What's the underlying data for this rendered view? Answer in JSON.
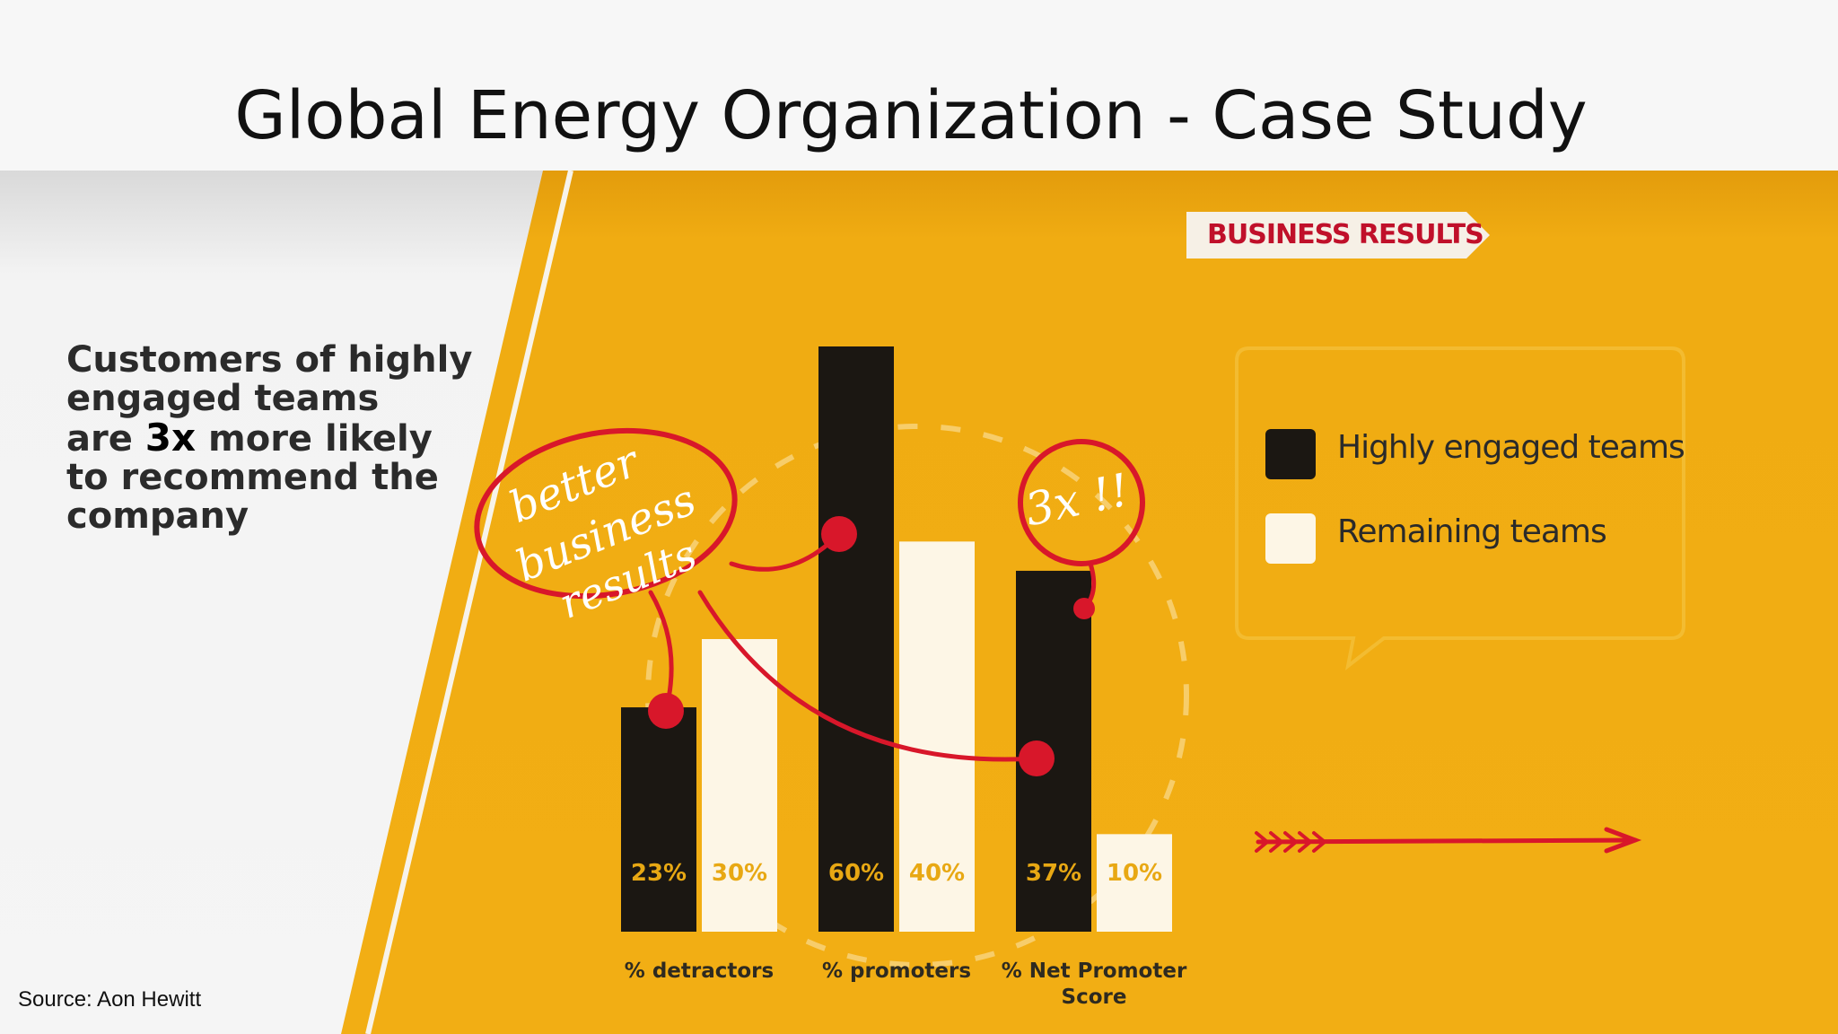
{
  "slide": {
    "title": "Global Energy Organization - Case Study",
    "source": "Source: Aon Hewitt"
  },
  "left_text": {
    "line1": "Customers of highly",
    "line2": "engaged teams",
    "line3_before": "are ",
    "line3_emphasis": "3x",
    "line3_after": " more likely",
    "line4": "to recommend the",
    "line5": "company"
  },
  "badge": {
    "label": "BUSINESS RESULTS"
  },
  "annotations": {
    "circle_text_1": "better",
    "circle_text_2": "business",
    "circle_text_3": "results",
    "multiplier": "3x !!"
  },
  "colors": {
    "panel_yellow": "#f0ac12",
    "highly_engaged": "#1b1712",
    "remaining": "#fdf6e6",
    "annotation_red": "#d8172a",
    "badge_red": "#c0102a"
  },
  "chart_data": {
    "type": "bar",
    "categories": [
      "% detractors",
      "% promoters",
      "% Net Promoter Score"
    ],
    "series": [
      {
        "name": "Highly engaged teams",
        "values": [
          23,
          60,
          37
        ]
      },
      {
        "name": "Remaining teams",
        "values": [
          30,
          40,
          10
        ]
      }
    ],
    "data_labels": [
      [
        "23%",
        "60%",
        "37%"
      ],
      [
        "30%",
        "40%",
        "10%"
      ]
    ],
    "unit": "%",
    "legend_position": "right",
    "grid": false,
    "ylim": [
      0,
      60
    ]
  }
}
